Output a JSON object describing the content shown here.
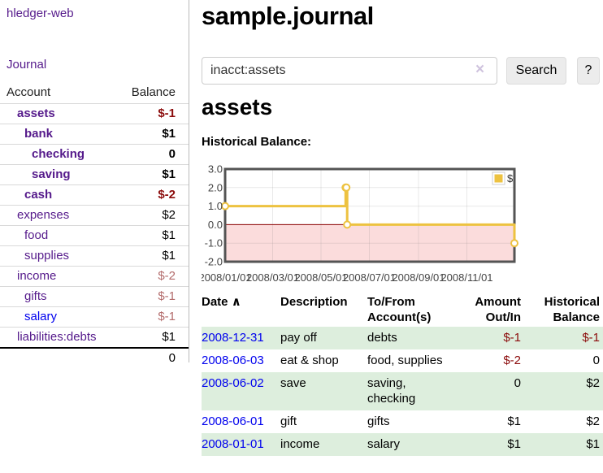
{
  "app_title": "hledger-web",
  "sidebar": {
    "journal_link": "Journal",
    "accounts_table": {
      "col_account": "Account",
      "col_balance": "Balance",
      "rows": [
        {
          "name": "assets",
          "indent": 0,
          "bold": true,
          "link_color": "purple",
          "balance": "$-1",
          "balance_style": "negative"
        },
        {
          "name": "bank",
          "indent": 1,
          "bold": true,
          "link_color": "purple",
          "balance": "$1",
          "balance_style": "normal"
        },
        {
          "name": "checking",
          "indent": 2,
          "bold": true,
          "link_color": "purple",
          "balance": "0",
          "balance_style": "normal"
        },
        {
          "name": "saving",
          "indent": 2,
          "bold": true,
          "link_color": "purple",
          "balance": "$1",
          "balance_style": "normal"
        },
        {
          "name": "cash",
          "indent": 1,
          "bold": true,
          "link_color": "purple",
          "balance": "$-2",
          "balance_style": "negative"
        },
        {
          "name": "expenses",
          "indent": 0,
          "bold": false,
          "link_color": "purple",
          "balance": "$2",
          "balance_style": "normal"
        },
        {
          "name": "food",
          "indent": 1,
          "bold": false,
          "link_color": "purple",
          "balance": "$1",
          "balance_style": "normal"
        },
        {
          "name": "supplies",
          "indent": 1,
          "bold": false,
          "link_color": "purple",
          "balance": "$1",
          "balance_style": "normal"
        },
        {
          "name": "income",
          "indent": 0,
          "bold": false,
          "link_color": "purple",
          "balance": "$-2",
          "balance_style": "negative-muted"
        },
        {
          "name": "gifts",
          "indent": 1,
          "bold": false,
          "link_color": "purple",
          "balance": "$-1",
          "balance_style": "negative-muted"
        },
        {
          "name": "salary",
          "indent": 1,
          "bold": false,
          "link_color": "blue",
          "balance": "$-1",
          "balance_style": "negative-muted"
        },
        {
          "name": "liabilities:debts",
          "indent": 0,
          "bold": false,
          "link_color": "purple",
          "balance": "$1",
          "balance_style": "normal"
        }
      ],
      "total": "0"
    }
  },
  "main": {
    "title": "sample.journal",
    "search": {
      "value": "inacct:assets",
      "clear_icon": "×",
      "search_button": "Search",
      "help_button": "?"
    },
    "account_heading": "assets",
    "chart_heading": "Historical Balance:"
  },
  "chart_data": {
    "type": "line",
    "title": "Historical Balance",
    "step": true,
    "xmin": "2008-01-01",
    "xmax": "2008-12-31",
    "ylim": [
      -2.0,
      3.0
    ],
    "yticks": [
      3.0,
      2.0,
      1.0,
      0.0,
      -1.0,
      -2.0
    ],
    "xticks": [
      "2008/01/01",
      "2008/03/01",
      "2008/05/01",
      "2008/07/01",
      "2008/09/01",
      "2008/11/01"
    ],
    "series": [
      {
        "name": "$",
        "color": "#edc240",
        "points": [
          {
            "date": "2008-01-01",
            "value": 1.0
          },
          {
            "date": "2008-06-01",
            "value": 2.0
          },
          {
            "date": "2008-06-02",
            "value": 2.0
          },
          {
            "date": "2008-06-03",
            "value": 0.0
          },
          {
            "date": "2008-12-31",
            "value": -1.0
          }
        ]
      }
    ],
    "legend": {
      "label": "$",
      "position": "top-right"
    },
    "grid": true,
    "negative_region_color": "#fbdcdc",
    "zero_line_color": "#8b0000",
    "border_color": "#545454"
  },
  "register": {
    "headers": {
      "date": "Date",
      "sort_icon": "∧",
      "description": "Description",
      "tofrom": "To/From Account(s)",
      "amount": "Amount Out/In",
      "balance": "Historical Balance"
    },
    "rows": [
      {
        "date": "2008-12-31",
        "description": "pay off",
        "accounts": "debts",
        "amount": "$-1",
        "amount_negative": true,
        "balance": "$-1",
        "balance_negative": true,
        "highlighted": true
      },
      {
        "date": "2008-06-03",
        "description": "eat & shop",
        "accounts": "food, supplies",
        "amount": "$-2",
        "amount_negative": true,
        "balance": "0",
        "balance_negative": false,
        "highlighted": false
      },
      {
        "date": "2008-06-02",
        "description": "save",
        "accounts": "saving, checking",
        "amount": "0",
        "amount_negative": false,
        "balance": "$2",
        "balance_negative": false,
        "highlighted": true
      },
      {
        "date": "2008-06-01",
        "description": "gift",
        "accounts": "gifts",
        "amount": "$1",
        "amount_negative": false,
        "balance": "$2",
        "balance_negative": false,
        "highlighted": false
      },
      {
        "date": "2008-01-01",
        "description": "income",
        "accounts": "salary",
        "amount": "$1",
        "amount_negative": false,
        "balance": "$1",
        "balance_negative": false,
        "highlighted": true
      }
    ]
  },
  "colors": {
    "link_purple": "#551a8b",
    "link_blue": "#0000ee",
    "negative": "#8b0b0b",
    "negative_muted": "#b36b6b",
    "row_highlight_green": "#ddeedd",
    "chart_line_gold": "#edc240",
    "chart_negative_fill": "#fbdcdc",
    "chart_zero_line": "#8b0000",
    "chart_border": "#545454"
  }
}
